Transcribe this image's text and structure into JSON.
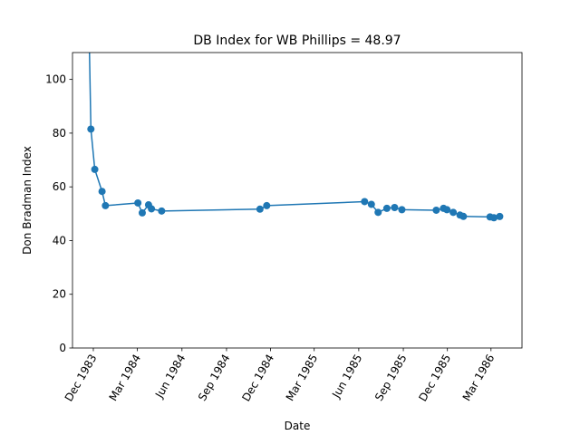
{
  "chart_data": {
    "type": "line",
    "title": "DB Index for WB Phillips = 48.97",
    "xlabel": "Date",
    "ylabel": "Don Bradman Index",
    "xlim": [
      "1983-10-19",
      "1986-05-04"
    ],
    "ylim": [
      0,
      110
    ],
    "x_ticks": [
      {
        "date": "1983-12-01",
        "label": "Dec 1983"
      },
      {
        "date": "1984-03-01",
        "label": "Mar 1984"
      },
      {
        "date": "1984-06-01",
        "label": "Jun 1984"
      },
      {
        "date": "1984-09-01",
        "label": "Sep 1984"
      },
      {
        "date": "1984-12-01",
        "label": "Dec 1984"
      },
      {
        "date": "1985-03-01",
        "label": "Mar 1985"
      },
      {
        "date": "1985-06-01",
        "label": "Jun 1985"
      },
      {
        "date": "1985-09-01",
        "label": "Sep 1985"
      },
      {
        "date": "1985-12-01",
        "label": "Dec 1985"
      },
      {
        "date": "1986-03-01",
        "label": "Mar 1986"
      }
    ],
    "y_ticks": [
      0,
      20,
      40,
      60,
      80,
      100
    ],
    "grid": false,
    "series": [
      {
        "color": "#1f77b4",
        "marker": "circle",
        "points": [
          {
            "x": "1983-11-18",
            "y": 159,
            "marker": false
          },
          {
            "x": "1983-11-26",
            "y": 81.5
          },
          {
            "x": "1983-12-04",
            "y": 66.5
          },
          {
            "x": "1983-12-19",
            "y": 58.3
          },
          {
            "x": "1983-12-26",
            "y": 53.0
          },
          {
            "x": "1984-03-02",
            "y": 54.0
          },
          {
            "x": "1984-03-11",
            "y": 50.3
          },
          {
            "x": "1984-03-24",
            "y": 53.3
          },
          {
            "x": "1984-03-30",
            "y": 51.8
          },
          {
            "x": "1984-04-20",
            "y": 51.0
          },
          {
            "x": "1984-11-09",
            "y": 51.7
          },
          {
            "x": "1984-11-23",
            "y": 53.0
          },
          {
            "x": "1985-06-13",
            "y": 54.5
          },
          {
            "x": "1985-06-27",
            "y": 53.5
          },
          {
            "x": "1985-07-11",
            "y": 50.5
          },
          {
            "x": "1985-07-29",
            "y": 52.0
          },
          {
            "x": "1985-08-14",
            "y": 52.3
          },
          {
            "x": "1985-08-29",
            "y": 51.5
          },
          {
            "x": "1985-11-08",
            "y": 51.3
          },
          {
            "x": "1985-11-23",
            "y": 52.0
          },
          {
            "x": "1985-11-30",
            "y": 51.5
          },
          {
            "x": "1985-12-13",
            "y": 50.5
          },
          {
            "x": "1985-12-27",
            "y": 49.5
          },
          {
            "x": "1986-01-03",
            "y": 49.0
          },
          {
            "x": "1986-02-27",
            "y": 48.8
          },
          {
            "x": "1986-03-07",
            "y": 48.5
          },
          {
            "x": "1986-03-19",
            "y": 48.97
          }
        ]
      }
    ]
  }
}
